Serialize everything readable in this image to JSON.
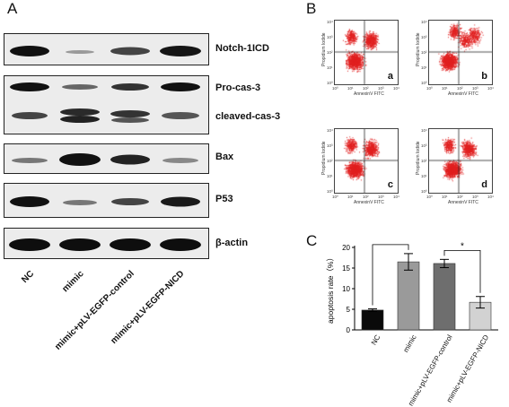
{
  "panel_a": {
    "letter": "A",
    "bands": [
      {
        "label": "Notch-1ICD"
      },
      {
        "label": "Pro-cas-3"
      },
      {
        "label": "cleaved-cas-3"
      },
      {
        "label": "Bax"
      },
      {
        "label": "P53"
      },
      {
        "label": "β-actin"
      }
    ],
    "samples": [
      "NC",
      "mimic",
      "mimic+pLV-EGFP-control",
      "mimic+pLV-EGFP-NICD"
    ]
  },
  "panel_b": {
    "letter": "B",
    "plots": [
      {
        "letter": "a"
      },
      {
        "letter": "b"
      },
      {
        "letter": "c"
      },
      {
        "letter": "d"
      }
    ],
    "xlabel": "AnnexinV FITC",
    "ylabel": "Propidium Iodide",
    "ticks": [
      "10⁰",
      "10¹",
      "10²",
      "10³",
      "10⁴"
    ],
    "colors": {
      "dots": "#e02020",
      "axis": "#444444"
    }
  },
  "panel_c": {
    "letter": "C",
    "sig_marks": [
      "*",
      "*"
    ]
  },
  "chart_data": {
    "type": "bar",
    "categories": [
      "NC",
      "mimic",
      "mimic+pLV-EGFP-control",
      "mimic+pLV-EGFP-NICD"
    ],
    "values": [
      4.8,
      16.5,
      16.1,
      6.7
    ],
    "errors": [
      0.3,
      2.0,
      1.0,
      1.4
    ],
    "bar_colors": [
      "#0a0a0a",
      "#9a9a9a",
      "#6e6e6e",
      "#d2d2d2"
    ],
    "ylabel": "apoptosis rate（%）",
    "ylim": [
      0,
      20
    ],
    "yticks": [
      0,
      5,
      10,
      15,
      20
    ],
    "grid": false
  }
}
